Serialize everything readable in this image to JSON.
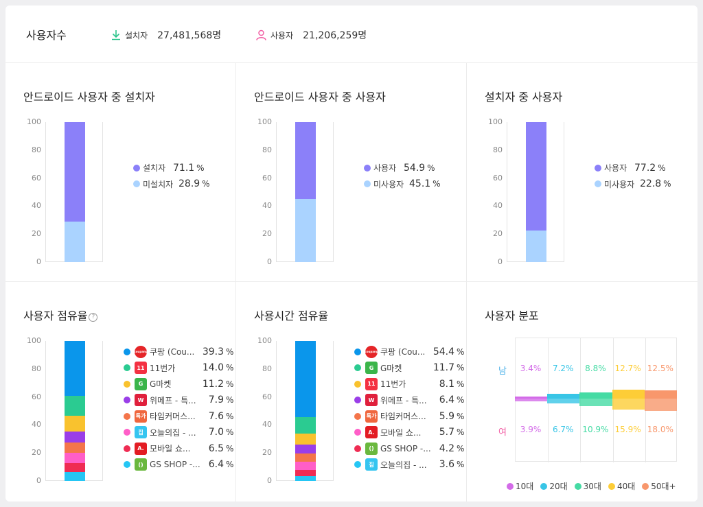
{
  "header": {
    "title": "사용자수",
    "installs_label": "설치자",
    "installs_value": "27,481,568명",
    "users_label": "사용자",
    "users_value": "21,206,259명"
  },
  "colors": {
    "purple": "#8b80f9",
    "lightblue": "#aad3ff",
    "accent_green": "#2bc48a",
    "accent_pink": "#f25fa5"
  },
  "chart_data": [
    {
      "type": "bar",
      "title": "안드로이드 사용자 중 설치자",
      "ylim": [
        0,
        100
      ],
      "yticks": [
        "100",
        "80",
        "60",
        "40",
        "20",
        "0"
      ],
      "series": [
        {
          "name": "설치자",
          "value": 71.1,
          "label": "71.1",
          "color": "#8b80f9"
        },
        {
          "name": "미설치자",
          "value": 28.9,
          "label": "28.9",
          "color": "#aad3ff"
        }
      ]
    },
    {
      "type": "bar",
      "title": "안드로이드 사용자 중 사용자",
      "ylim": [
        0,
        100
      ],
      "yticks": [
        "100",
        "80",
        "60",
        "40",
        "20",
        "0"
      ],
      "series": [
        {
          "name": "사용자",
          "value": 54.9,
          "label": "54.9",
          "color": "#8b80f9"
        },
        {
          "name": "미사용자",
          "value": 45.1,
          "label": "45.1",
          "color": "#aad3ff"
        }
      ]
    },
    {
      "type": "bar",
      "title": "설치자 중 사용자",
      "ylim": [
        0,
        100
      ],
      "yticks": [
        "100",
        "80",
        "60",
        "40",
        "20",
        "0"
      ],
      "series": [
        {
          "name": "사용자",
          "value": 77.2,
          "label": "77.2",
          "color": "#8b80f9"
        },
        {
          "name": "미사용자",
          "value": 22.8,
          "label": "22.8",
          "color": "#aad3ff"
        }
      ]
    },
    {
      "type": "bar",
      "title": "사용자 점유율",
      "help_icon": "?",
      "ylim": [
        0,
        100
      ],
      "yticks": [
        "100",
        "80",
        "60",
        "40",
        "20",
        "0"
      ],
      "series": [
        {
          "name": "쿠팡 (Cou...",
          "value": 39.3,
          "label": "39.3",
          "color": "#0a96eb",
          "icon": "coupang",
          "icon_color": "#e52528",
          "icon_text": "coupang"
        },
        {
          "name": "11번가",
          "value": 14.0,
          "label": "14.0",
          "color": "#2bcb91",
          "icon": "11st",
          "icon_color": "#f43142",
          "icon_text": "11"
        },
        {
          "name": "G마켓",
          "value": 11.2,
          "label": "11.2",
          "color": "#f9c22e",
          "icon": "gmarket",
          "icon_color": "#3bb54a",
          "icon_text": "G"
        },
        {
          "name": "위메프 - 특...",
          "value": 7.9,
          "label": "7.9",
          "color": "#9a3ee8",
          "icon": "wemakeprice",
          "icon_color": "#e0203c",
          "icon_text": "W"
        },
        {
          "name": "타임커머스...",
          "value": 7.6,
          "label": "7.6",
          "color": "#f4754a",
          "icon": "timecommerce",
          "icon_color": "#f0673e",
          "icon_text": "특가"
        },
        {
          "name": "오늘의집 - ...",
          "value": 7.0,
          "label": "7.0",
          "color": "#ff5ec8",
          "icon": "ohouse",
          "icon_color": "#35c5f0",
          "icon_text": "집"
        },
        {
          "name": "모바일 쇼...",
          "value": 6.5,
          "label": "6.5",
          "color": "#ef2c53",
          "icon": "auction",
          "icon_color": "#e31c23",
          "icon_text": "A."
        },
        {
          "name": "GS SHOP -...",
          "value": 6.4,
          "label": "6.4",
          "color": "#25c6f4",
          "icon": "gsshop",
          "icon_color": "#6ab83e",
          "icon_text": "()"
        }
      ]
    },
    {
      "type": "bar",
      "title": "사용시간 점유율",
      "ylim": [
        0,
        100
      ],
      "yticks": [
        "100",
        "80",
        "60",
        "40",
        "20",
        "0"
      ],
      "series": [
        {
          "name": "쿠팡 (Cou...",
          "value": 54.4,
          "label": "54.4",
          "color": "#0a96eb",
          "icon": "coupang",
          "icon_color": "#e52528",
          "icon_text": "coupang"
        },
        {
          "name": "G마켓",
          "value": 11.7,
          "label": "11.7",
          "color": "#2bcb91",
          "icon": "gmarket",
          "icon_color": "#3bb54a",
          "icon_text": "G"
        },
        {
          "name": "11번가",
          "value": 8.1,
          "label": "8.1",
          "color": "#f9c22e",
          "icon": "11st",
          "icon_color": "#f43142",
          "icon_text": "11"
        },
        {
          "name": "위메프 - 특...",
          "value": 6.4,
          "label": "6.4",
          "color": "#9a3ee8",
          "icon": "wemakeprice",
          "icon_color": "#e0203c",
          "icon_text": "W"
        },
        {
          "name": "타임커머스...",
          "value": 5.9,
          "label": "5.9",
          "color": "#f4754a",
          "icon": "timecommerce",
          "icon_color": "#f0673e",
          "icon_text": "특가"
        },
        {
          "name": "모바일 쇼...",
          "value": 5.7,
          "label": "5.7",
          "color": "#ff5ec8",
          "icon": "auction",
          "icon_color": "#e31c23",
          "icon_text": "A."
        },
        {
          "name": "GS SHOP -...",
          "value": 4.2,
          "label": "4.2",
          "color": "#ef2c53",
          "icon": "gsshop",
          "icon_color": "#6ab83e",
          "icon_text": "()"
        },
        {
          "name": "오늘의집 - ...",
          "value": 3.6,
          "label": "3.6",
          "color": "#25c6f4",
          "icon": "ohouse",
          "icon_color": "#35c5f0",
          "icon_text": "집"
        }
      ]
    },
    {
      "type": "bar",
      "title": "사용자 분포",
      "rows": [
        "남",
        "여"
      ],
      "categories": [
        "10대",
        "20대",
        "30대",
        "40대",
        "50대+"
      ],
      "colors": [
        "#d36be8",
        "#38c5e6",
        "#45dba4",
        "#fdcd37",
        "#f8976c"
      ],
      "series": [
        {
          "name": "남",
          "values": [
            3.4,
            7.2,
            8.8,
            12.7,
            12.5
          ],
          "labels": [
            "3.4%",
            "7.2%",
            "8.8%",
            "12.7%",
            "12.5%"
          ]
        },
        {
          "name": "여",
          "values": [
            3.9,
            6.7,
            10.9,
            15.9,
            18.0
          ],
          "labels": [
            "3.9%",
            "6.7%",
            "10.9%",
            "15.9%",
            "18.0%"
          ]
        }
      ]
    }
  ],
  "pct_sign": "%"
}
